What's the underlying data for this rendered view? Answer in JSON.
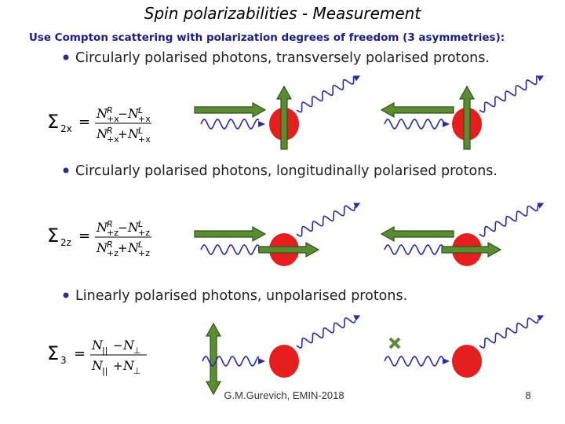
{
  "header": {
    "title": "Spin polarizabilities - Measurement",
    "subtitle": "Use Compton scattering with polarization degrees of freedom (3 asymmetries):"
  },
  "sections": [
    {
      "bullet": "Circularly polarised photons, transversely polarised protons.",
      "formula": {
        "symbol": "Σ",
        "symbol_sub": "2x",
        "eq": "=",
        "num": {
          "left": {
            "base": "N",
            "sup": "R",
            "sub": "+x"
          },
          "op": "−",
          "right": {
            "base": "N",
            "sup": "L",
            "sub": "+x"
          }
        },
        "den": {
          "left": {
            "base": "N",
            "sup": "R",
            "sub": "+x"
          },
          "op": "+",
          "right": {
            "base": "N",
            "sup": "L",
            "sub": "+x"
          }
        }
      }
    },
    {
      "bullet": "Circularly polarised photons, longitudinally polarised protons.",
      "formula": {
        "symbol": "Σ",
        "symbol_sub": "2z",
        "eq": "=",
        "num": {
          "left": {
            "base": "N",
            "sup": "R",
            "sub": "+z"
          },
          "op": "−",
          "right": {
            "base": "N",
            "sup": "L",
            "sub": "+z"
          }
        },
        "den": {
          "left": {
            "base": "N",
            "sup": "R",
            "sub": "+z"
          },
          "op": "+",
          "right": {
            "base": "N",
            "sup": "L",
            "sub": "+z"
          }
        }
      }
    },
    {
      "bullet": "Linearly polarised photons, unpolarised protons.",
      "formula": {
        "symbol": "Σ",
        "symbol_sub": "3",
        "eq": "=",
        "num": {
          "left": {
            "base": "N",
            "sub": "||"
          },
          "op": "−",
          "right": {
            "base": "N",
            "sub": "⊥"
          }
        },
        "den": {
          "left": {
            "base": "N",
            "sub": "||"
          },
          "op": "+",
          "right": {
            "base": "N",
            "sub": "⊥"
          }
        }
      }
    }
  ],
  "footer": {
    "author": "G.M.Gurevich, EMIN-2018",
    "page": "8"
  }
}
